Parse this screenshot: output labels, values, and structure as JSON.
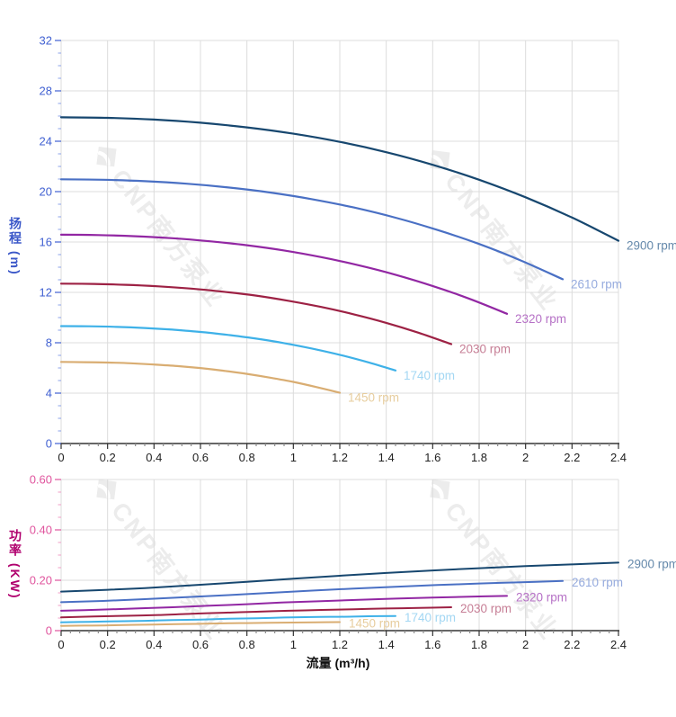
{
  "watermark": {
    "text": "CNP南方泵业",
    "color": "#ececec"
  },
  "colors": {
    "grid": "#dcdcdc",
    "head_axis": "#4161d2",
    "head_axis_minor": "#9db0ec",
    "power_axis": "#e0559e",
    "power_axis_minor": "#f2abce",
    "x_axis_line": "#333333",
    "x_tick_minor": "#8a8a8a",
    "x_tick_label": "#222222"
  },
  "chart_data": [
    {
      "id": "head",
      "type": "line",
      "title": "",
      "xlabel": "",
      "ylabel": "扬程 (m)",
      "xlim": [
        0,
        2.4
      ],
      "ylim": [
        0,
        32
      ],
      "x_tick_labels": [
        "0",
        "0.2",
        "0.4",
        "0.6",
        "0.8",
        "1",
        "1.2",
        "1.4",
        "1.6",
        "1.8",
        "2",
        "2.2",
        "2.4"
      ],
      "y_tick_labels": [
        "0",
        "4",
        "8",
        "12",
        "16",
        "20",
        "24",
        "28",
        "32"
      ],
      "grid": true,
      "legend_position": "curve-end-labels",
      "axis_color": "#4161d2",
      "series": [
        {
          "name": "2900 rpm",
          "color": "#17476f",
          "label_color": "#6589ab",
          "points": [
            [
              0,
              25.9
            ],
            [
              0.2,
              25.86
            ],
            [
              0.4,
              25.72
            ],
            [
              0.6,
              25.47
            ],
            [
              0.8,
              25.1
            ],
            [
              1,
              24.6
            ],
            [
              1.2,
              23.95
            ],
            [
              1.4,
              23.13
            ],
            [
              1.6,
              22.13
            ],
            [
              1.8,
              20.94
            ],
            [
              2,
              19.55
            ],
            [
              2.2,
              17.94
            ],
            [
              2.4,
              16.1
            ]
          ]
        },
        {
          "name": "2610 rpm",
          "color": "#4a70c4",
          "label_color": "#96abde",
          "points": [
            [
              0,
              20.98
            ],
            [
              0.18,
              20.94
            ],
            [
              0.36,
              20.83
            ],
            [
              0.54,
              20.63
            ],
            [
              0.72,
              20.33
            ],
            [
              0.9,
              19.93
            ],
            [
              1.08,
              19.4
            ],
            [
              1.26,
              18.74
            ],
            [
              1.44,
              17.93
            ],
            [
              1.62,
              16.96
            ],
            [
              1.8,
              15.84
            ],
            [
              1.98,
              14.53
            ],
            [
              2.16,
              13.04
            ]
          ]
        },
        {
          "name": "2320 rpm",
          "color": "#9227a3",
          "label_color": "#b671c6",
          "points": [
            [
              0,
              16.58
            ],
            [
              0.16,
              16.55
            ],
            [
              0.32,
              16.46
            ],
            [
              0.48,
              16.3
            ],
            [
              0.64,
              16.06
            ],
            [
              0.8,
              15.74
            ],
            [
              0.96,
              15.33
            ],
            [
              1.12,
              14.8
            ],
            [
              1.28,
              14.16
            ],
            [
              1.44,
              13.4
            ],
            [
              1.6,
              12.51
            ],
            [
              1.76,
              11.48
            ],
            [
              1.92,
              10.3
            ]
          ]
        },
        {
          "name": "2030 rpm",
          "color": "#9d2144",
          "label_color": "#c67e95",
          "points": [
            [
              0,
              12.69
            ],
            [
              0.14,
              12.67
            ],
            [
              0.28,
              12.6
            ],
            [
              0.42,
              12.48
            ],
            [
              0.56,
              12.3
            ],
            [
              0.7,
              12.05
            ],
            [
              0.84,
              11.74
            ],
            [
              0.98,
              11.33
            ],
            [
              1.12,
              10.84
            ],
            [
              1.26,
              10.26
            ],
            [
              1.4,
              9.58
            ],
            [
              1.54,
              8.79
            ],
            [
              1.68,
              7.89
            ]
          ]
        },
        {
          "name": "1740 rpm",
          "color": "#3eb1e8",
          "label_color": "#a3d7f3",
          "points": [
            [
              0,
              9.32
            ],
            [
              0.12,
              9.31
            ],
            [
              0.24,
              9.26
            ],
            [
              0.36,
              9.17
            ],
            [
              0.48,
              9.04
            ],
            [
              0.6,
              8.86
            ],
            [
              0.72,
              8.62
            ],
            [
              0.84,
              8.33
            ],
            [
              0.96,
              7.97
            ],
            [
              1.08,
              7.54
            ],
            [
              1.2,
              7.04
            ],
            [
              1.32,
              6.46
            ],
            [
              1.44,
              5.8
            ]
          ]
        },
        {
          "name": "1450 rpm",
          "color": "#d9ad72",
          "label_color": "#e7cd9e",
          "points": [
            [
              0,
              6.48
            ],
            [
              0.1,
              6.46
            ],
            [
              0.2,
              6.43
            ],
            [
              0.3,
              6.37
            ],
            [
              0.4,
              6.27
            ],
            [
              0.5,
              6.15
            ],
            [
              0.6,
              5.99
            ],
            [
              0.7,
              5.78
            ],
            [
              0.8,
              5.53
            ],
            [
              0.9,
              5.23
            ],
            [
              1,
              4.89
            ],
            [
              1.1,
              4.48
            ],
            [
              1.2,
              4.03
            ]
          ]
        }
      ]
    },
    {
      "id": "power",
      "type": "line",
      "title": "",
      "xlabel": "流量 (m³/h)",
      "ylabel": "功率 (KW)",
      "xlim": [
        0,
        2.4
      ],
      "ylim": [
        0,
        0.6
      ],
      "x_tick_labels": [
        "0",
        "0.2",
        "0.4",
        "0.6",
        "0.8",
        "1",
        "1.2",
        "1.4",
        "1.6",
        "1.8",
        "2",
        "2.2",
        "2.4"
      ],
      "y_tick_labels": [
        "0",
        "0.20",
        "0.40",
        "0.60"
      ],
      "grid": true,
      "legend_position": "curve-end-labels",
      "axis_color": "#e0559e",
      "series": [
        {
          "name": "2900 rpm",
          "color": "#17476f",
          "label_color": "#6589ab",
          "points": [
            [
              0,
              0.155
            ],
            [
              0.2,
              0.162
            ],
            [
              0.4,
              0.171
            ],
            [
              0.6,
              0.182
            ],
            [
              0.8,
              0.194
            ],
            [
              1,
              0.206
            ],
            [
              1.2,
              0.218
            ],
            [
              1.4,
              0.229
            ],
            [
              1.6,
              0.239
            ],
            [
              1.8,
              0.248
            ],
            [
              2,
              0.256
            ],
            [
              2.2,
              0.263
            ],
            [
              2.4,
              0.27
            ]
          ]
        },
        {
          "name": "2610 rpm",
          "color": "#4a70c4",
          "label_color": "#96abde",
          "points": [
            [
              0,
              0.113
            ],
            [
              0.18,
              0.118
            ],
            [
              0.36,
              0.125
            ],
            [
              0.54,
              0.133
            ],
            [
              0.72,
              0.141
            ],
            [
              0.9,
              0.15
            ],
            [
              1.08,
              0.159
            ],
            [
              1.26,
              0.167
            ],
            [
              1.44,
              0.174
            ],
            [
              1.62,
              0.181
            ],
            [
              1.8,
              0.187
            ],
            [
              1.98,
              0.192
            ],
            [
              2.16,
              0.197
            ]
          ]
        },
        {
          "name": "2320 rpm",
          "color": "#9227a3",
          "label_color": "#b671c6",
          "points": [
            [
              0,
              0.079
            ],
            [
              0.16,
              0.083
            ],
            [
              0.32,
              0.088
            ],
            [
              0.48,
              0.093
            ],
            [
              0.64,
              0.099
            ],
            [
              0.8,
              0.105
            ],
            [
              0.96,
              0.112
            ],
            [
              1.12,
              0.117
            ],
            [
              1.28,
              0.122
            ],
            [
              1.44,
              0.127
            ],
            [
              1.6,
              0.131
            ],
            [
              1.76,
              0.135
            ],
            [
              1.92,
              0.138
            ]
          ]
        },
        {
          "name": "2030 rpm",
          "color": "#9d2144",
          "label_color": "#c67e95",
          "points": [
            [
              0,
              0.053
            ],
            [
              0.14,
              0.056
            ],
            [
              0.28,
              0.059
            ],
            [
              0.42,
              0.062
            ],
            [
              0.56,
              0.067
            ],
            [
              0.7,
              0.071
            ],
            [
              0.84,
              0.075
            ],
            [
              0.98,
              0.079
            ],
            [
              1.12,
              0.082
            ],
            [
              1.26,
              0.085
            ],
            [
              1.4,
              0.088
            ],
            [
              1.54,
              0.09
            ],
            [
              1.68,
              0.093
            ]
          ]
        },
        {
          "name": "1740 rpm",
          "color": "#3eb1e8",
          "label_color": "#a3d7f3",
          "points": [
            [
              0,
              0.033
            ],
            [
              0.12,
              0.035
            ],
            [
              0.24,
              0.037
            ],
            [
              0.36,
              0.039
            ],
            [
              0.48,
              0.042
            ],
            [
              0.6,
              0.044
            ],
            [
              0.72,
              0.047
            ],
            [
              0.84,
              0.049
            ],
            [
              0.96,
              0.052
            ],
            [
              1.08,
              0.054
            ],
            [
              1.2,
              0.055
            ],
            [
              1.32,
              0.057
            ],
            [
              1.44,
              0.058
            ]
          ]
        },
        {
          "name": "1450 rpm",
          "color": "#d9ad72",
          "label_color": "#e7cd9e",
          "points": [
            [
              0,
              0.019
            ],
            [
              0.1,
              0.02
            ],
            [
              0.2,
              0.021
            ],
            [
              0.3,
              0.023
            ],
            [
              0.4,
              0.024
            ],
            [
              0.5,
              0.026
            ],
            [
              0.6,
              0.027
            ],
            [
              0.7,
              0.029
            ],
            [
              0.8,
              0.03
            ],
            [
              0.9,
              0.031
            ],
            [
              1,
              0.032
            ],
            [
              1.1,
              0.033
            ],
            [
              1.2,
              0.034
            ]
          ]
        }
      ]
    }
  ]
}
